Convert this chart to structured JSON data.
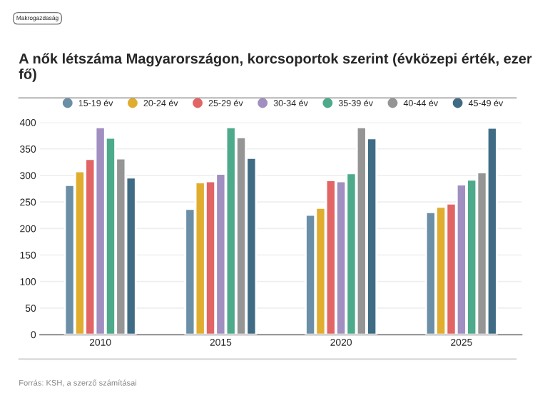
{
  "chart_data": {
    "type": "bar",
    "title": "A nők létszáma Magyarországon, korcsoportok szerint (évközepi érték, ezer fő)",
    "subtitle": "Makrogazdaság",
    "categories": [
      "2010",
      "2015",
      "2020",
      "2025"
    ],
    "series": [
      {
        "name": "15-19 év",
        "color": "#6a8fa6",
        "values": [
          282,
          237,
          226,
          231
        ]
      },
      {
        "name": "20-24 év",
        "color": "#e0ad2f",
        "values": [
          308,
          287,
          239,
          241
        ]
      },
      {
        "name": "25-29 év",
        "color": "#e26464",
        "values": [
          331,
          289,
          291,
          247
        ]
      },
      {
        "name": "30-34 év",
        "color": "#a08fc0",
        "values": [
          391,
          303,
          289,
          283
        ]
      },
      {
        "name": "35-39 év",
        "color": "#4daa8a",
        "values": [
          371,
          391,
          304,
          292
        ]
      },
      {
        "name": "40-44 év",
        "color": "#959595",
        "values": [
          332,
          372,
          391,
          306
        ]
      },
      {
        "name": "45-49 év",
        "color": "#3f6b85",
        "values": [
          296,
          333,
          370,
          390
        ]
      }
    ],
    "ylim": [
      0,
      400
    ],
    "yticks": [
      0,
      50,
      100,
      150,
      200,
      250,
      300,
      350,
      400
    ],
    "grid": "y",
    "legend": "top",
    "annotations": [
      "Forrás: KSH, a szerző számításai"
    ]
  }
}
